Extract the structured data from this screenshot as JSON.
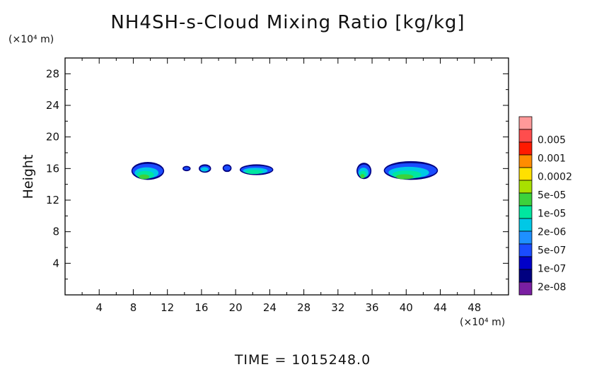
{
  "chart_data": {
    "type": "heatmap",
    "title": "NH4SH-s-Cloud Mixing Ratio [kg/kg]",
    "ylabel": "Height",
    "xlabel": "",
    "x_unit": "(×10⁴ m)",
    "y_unit": "(×10⁴ m)",
    "xlim": [
      0,
      52
    ],
    "ylim": [
      0,
      30
    ],
    "x_ticks": [
      4,
      8,
      12,
      16,
      20,
      24,
      28,
      32,
      36,
      40,
      44,
      48
    ],
    "y_ticks": [
      4,
      8,
      12,
      16,
      20,
      24,
      28
    ],
    "colorbar": {
      "labels": [
        "0.005",
        "0.001",
        "0.0002",
        "5e-05",
        "1e-05",
        "2e-06",
        "5e-07",
        "1e-07",
        "2e-08"
      ],
      "colors": [
        "#ff9999",
        "#ff4d4d",
        "#ff1a00",
        "#ff8c00",
        "#ffe000",
        "#a8e000",
        "#3cd23c",
        "#00e6a0",
        "#00c8e6",
        "#1e90ff",
        "#1a4cff",
        "#0000c8",
        "#000080",
        "#7a1fa2"
      ]
    },
    "clouds": [
      {
        "x": [
          7.9,
          11.5
        ],
        "y": [
          14.7,
          16.7
        ],
        "max_level": "1e-05"
      },
      {
        "x": [
          13.9,
          14.6
        ],
        "y": [
          15.8,
          16.2
        ],
        "max_level": "1e-07"
      },
      {
        "x": [
          15.8,
          17.0
        ],
        "y": [
          15.6,
          16.4
        ],
        "max_level": "5e-07"
      },
      {
        "x": [
          18.6,
          19.4
        ],
        "y": [
          15.7,
          16.4
        ],
        "max_level": "1e-07"
      },
      {
        "x": [
          20.6,
          24.3
        ],
        "y": [
          15.3,
          16.4
        ],
        "max_level": "2e-06"
      },
      {
        "x": [
          34.3,
          35.8
        ],
        "y": [
          14.8,
          16.6
        ],
        "max_level": "1e-05"
      },
      {
        "x": [
          37.5,
          43.6
        ],
        "y": [
          14.7,
          16.8
        ],
        "max_level": "1e-05"
      }
    ],
    "footer": "TIME = 1015248.0"
  }
}
